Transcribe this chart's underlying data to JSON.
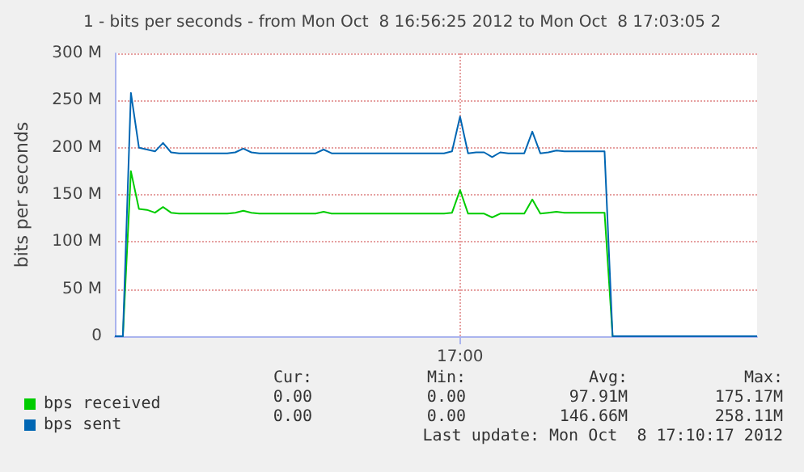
{
  "chart_data": {
    "type": "line",
    "title": "1 - bits per seconds - from Mon Oct  8 16:56:25 2012 to Mon Oct  8 17:03:05 2",
    "ylabel": "bits per seconds",
    "categories": [
      null,
      null,
      null,
      null,
      null,
      null,
      null,
      null,
      null,
      null,
      null,
      null,
      null,
      null,
      null,
      null,
      null,
      null,
      null,
      null,
      null,
      null,
      null,
      null,
      null,
      null,
      null,
      null,
      null,
      null,
      null,
      null,
      null,
      null,
      null,
      null,
      null,
      null,
      null,
      null,
      null,
      null,
      null,
      "17:00",
      null,
      null,
      null,
      null,
      null,
      null,
      null,
      null,
      null,
      null,
      null,
      null,
      null,
      null,
      null,
      null,
      null,
      null,
      null,
      null,
      null,
      null,
      null,
      null,
      null,
      null,
      null,
      null,
      null,
      null,
      null,
      null,
      null,
      null,
      null,
      null,
      null
    ],
    "series": [
      {
        "name": "bps received",
        "color": "#00cc00",
        "values": [
          0,
          0,
          175,
          135,
          134,
          131,
          137,
          131,
          130,
          130,
          130,
          130,
          130,
          130,
          130,
          131,
          133,
          131,
          130,
          130,
          130,
          130,
          130,
          130,
          130,
          130,
          132,
          130,
          130,
          130,
          130,
          130,
          130,
          130,
          130,
          130,
          130,
          130,
          130,
          130,
          130,
          130,
          131,
          155,
          130,
          130,
          130,
          126,
          130,
          130,
          130,
          130,
          145,
          130,
          131,
          132,
          131,
          131,
          131,
          131,
          131,
          131,
          0,
          0,
          null,
          null,
          null,
          null,
          null,
          null,
          null,
          null,
          null,
          null,
          null,
          null,
          null,
          null,
          null,
          null,
          null
        ]
      },
      {
        "name": "bps sent",
        "color": "#0066b3",
        "values": [
          0,
          0,
          258,
          200,
          198,
          196,
          205,
          195,
          194,
          194,
          194,
          194,
          194,
          194,
          194,
          195,
          199,
          195,
          194,
          194,
          194,
          194,
          194,
          194,
          194,
          194,
          198,
          194,
          194,
          194,
          194,
          194,
          194,
          194,
          194,
          194,
          194,
          194,
          194,
          194,
          194,
          194,
          196,
          233,
          194,
          195,
          195,
          190,
          195,
          194,
          194,
          194,
          217,
          194,
          195,
          197,
          196,
          196,
          196,
          196,
          196,
          196,
          0,
          0,
          0,
          0,
          0,
          0,
          0,
          0,
          0,
          0,
          0,
          0,
          0,
          0,
          0,
          0,
          0,
          0,
          0
        ]
      }
    ],
    "ylim": [
      0,
      300
    ],
    "yticks": [
      {
        "value": 0,
        "label": "0"
      },
      {
        "value": 50,
        "label": "50 M"
      },
      {
        "value": 100,
        "label": "100 M"
      },
      {
        "value": 150,
        "label": "150 M"
      },
      {
        "value": 200,
        "label": "200 M"
      },
      {
        "value": 250,
        "label": "250 M"
      },
      {
        "value": 300,
        "label": "300 M"
      }
    ],
    "grid": true,
    "legend": "bottom left",
    "annotations": [
      "Cur:",
      "Min:",
      "Avg:",
      "Max:",
      "0.00",
      "0.00",
      "97.91M",
      "175.17M",
      "0.00",
      "0.00",
      "146.66M",
      "258.11M",
      "Last update: Mon Oct  8 17:10:17 2012"
    ]
  }
}
